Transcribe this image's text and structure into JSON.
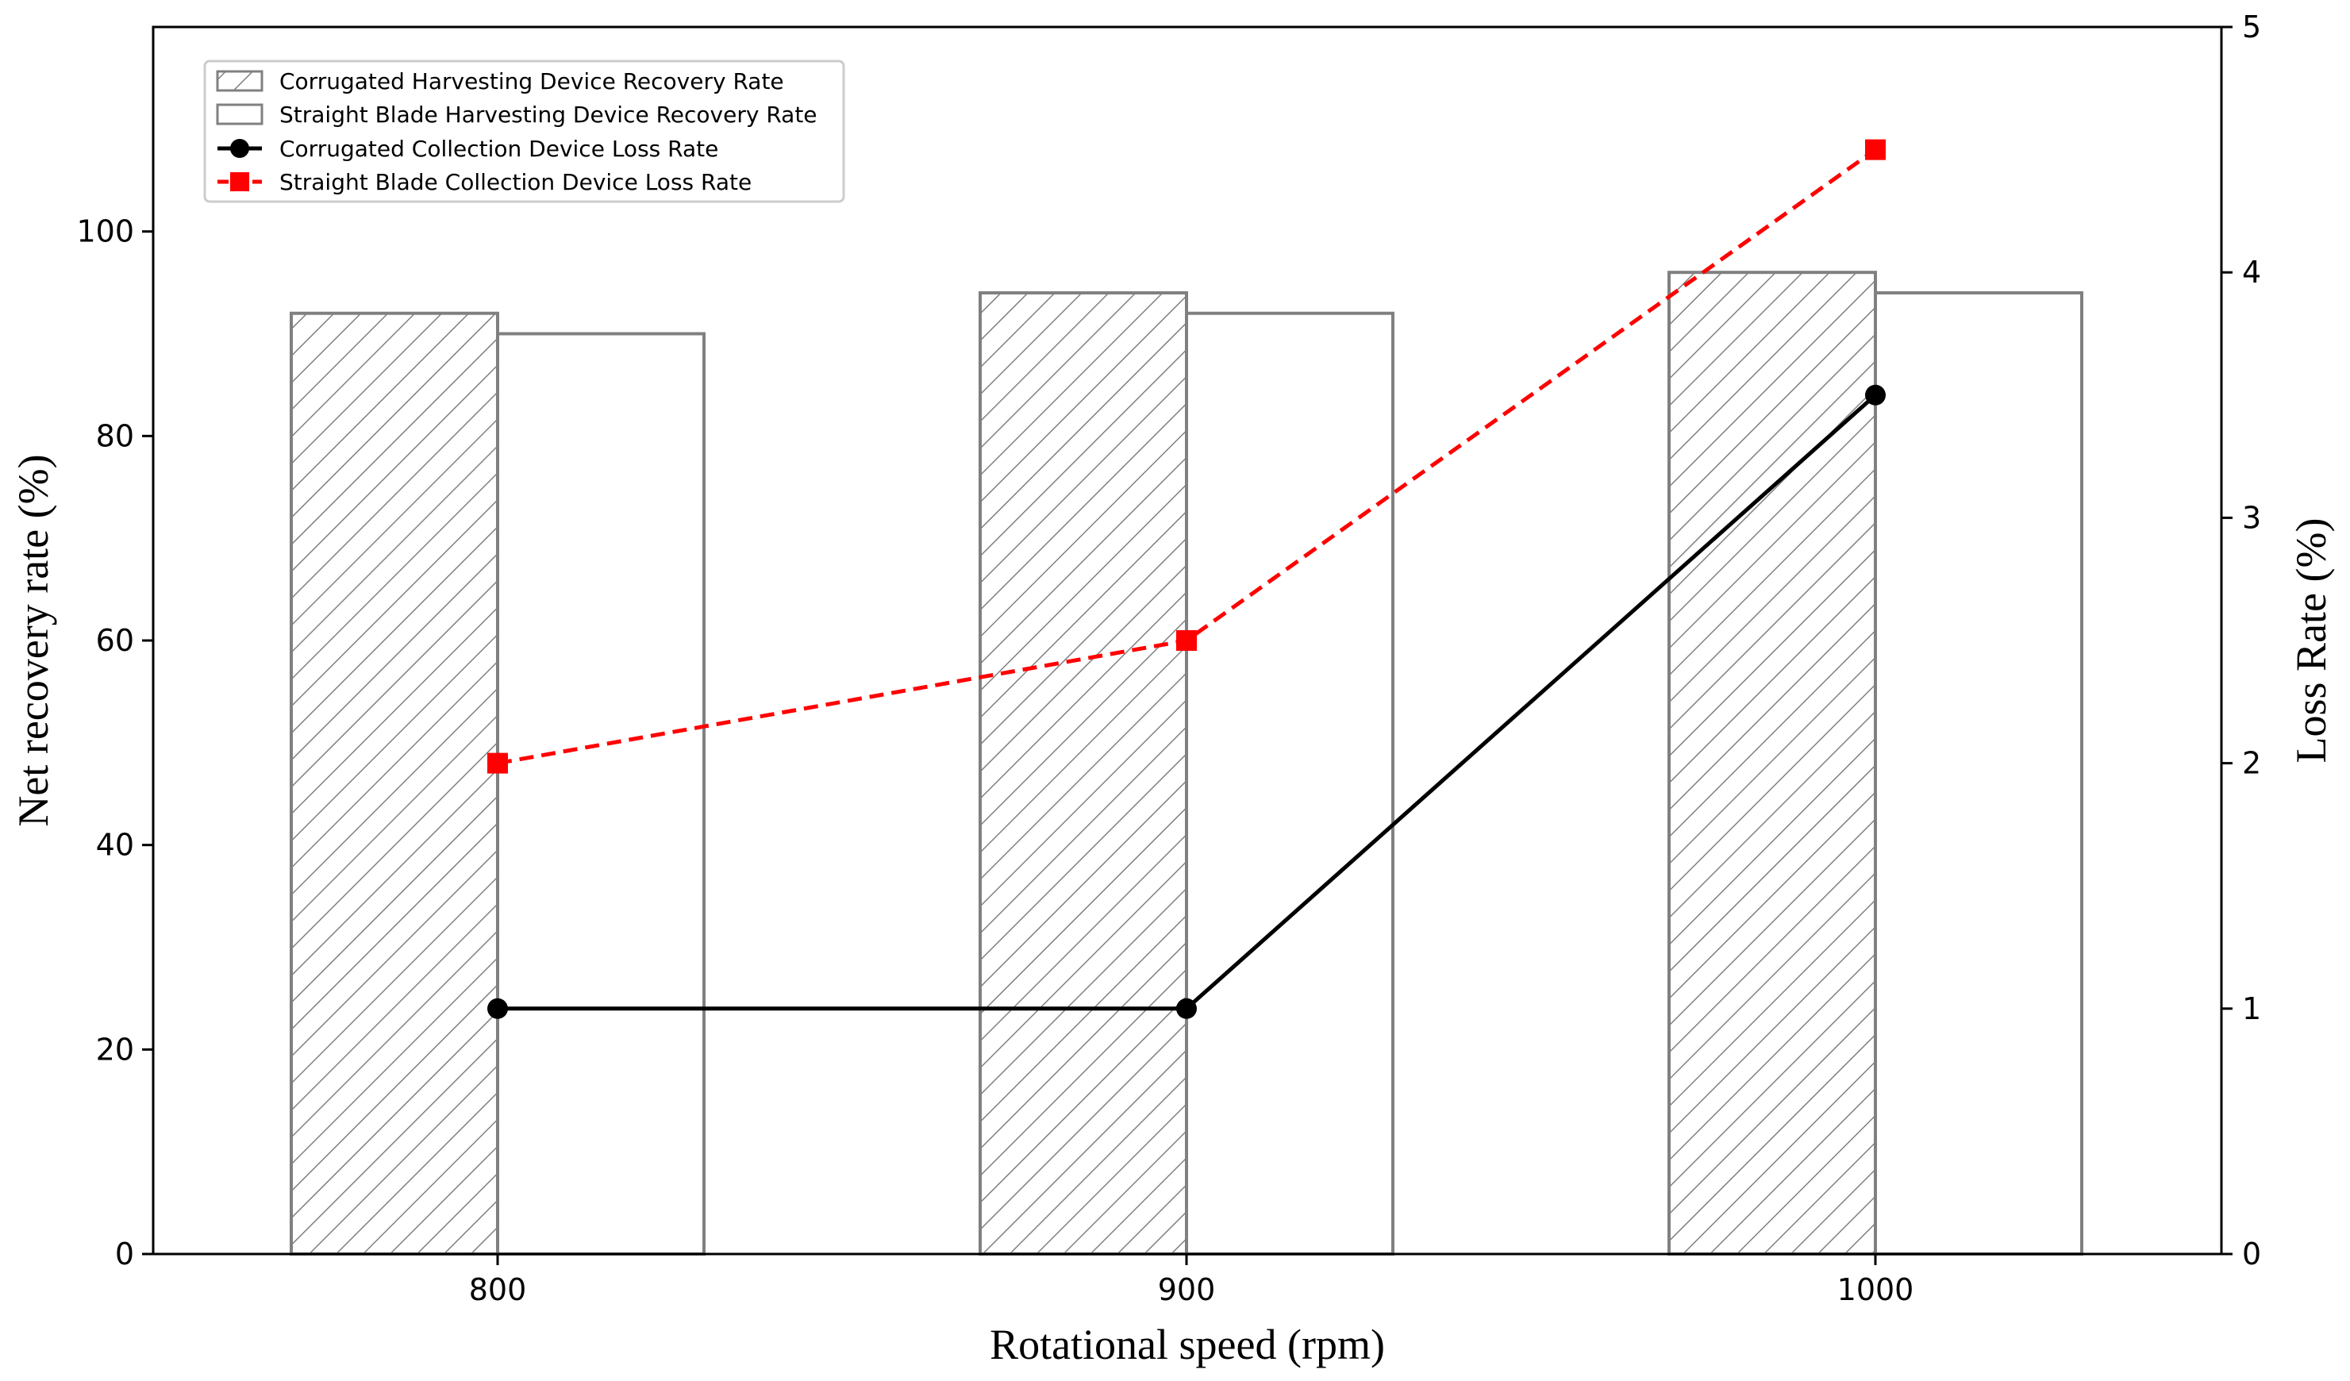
{
  "chart_data": {
    "type": "bar",
    "categories": [
      "800",
      "900",
      "1000"
    ],
    "xlabel": "Rotational speed (rpm)",
    "ylabel": "Net recovery rate (%)",
    "y2label": "Loss Rate (%)",
    "ylim": [
      0,
      120
    ],
    "y2lim": [
      0,
      5
    ],
    "yticks": [
      0,
      20,
      40,
      60,
      80,
      100
    ],
    "y2ticks": [
      0,
      1,
      2,
      3,
      4,
      5
    ],
    "grid": false,
    "legend_position": "top-left",
    "bar_series": [
      {
        "name": "Corrugated Harvesting Device Recovery Rate",
        "values": [
          92,
          94,
          96
        ],
        "fill": "hatch",
        "color": "#808080"
      },
      {
        "name": "Straight Blade Harvesting Device Recovery Rate",
        "values": [
          90,
          92,
          94
        ],
        "fill": "none",
        "color": "#808080"
      }
    ],
    "line_series": [
      {
        "name": "Corrugated Collection Device Loss Rate",
        "values": [
          1.0,
          1.0,
          3.5
        ],
        "color": "#000000",
        "style": "solid",
        "marker": "circle",
        "axis": "right"
      },
      {
        "name": "Straight Blade Collection Device Loss Rate",
        "values": [
          2.0,
          2.5,
          4.5
        ],
        "color": "#ff0000",
        "style": "dashed",
        "marker": "square",
        "axis": "right"
      }
    ]
  }
}
